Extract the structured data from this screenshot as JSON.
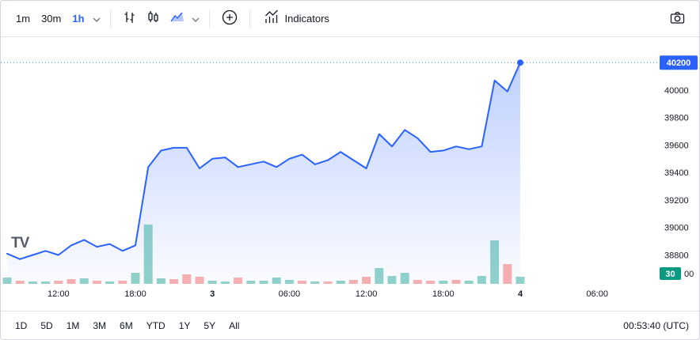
{
  "toolbar": {
    "timeframes": [
      {
        "label": "1m",
        "active": false
      },
      {
        "label": "30m",
        "active": false
      },
      {
        "label": "1h",
        "active": true
      }
    ],
    "indicators_label": "Indicators",
    "icons": [
      "chevron-down-icon",
      "bar-style-icon",
      "candle-style-icon",
      "area-style-icon",
      "plus-circle-icon",
      "indicators-icon",
      "camera-icon"
    ]
  },
  "chart": {
    "last_price_label": "40200",
    "volume_badge": "30",
    "partial_bottom_label": "00",
    "watermark": "TV"
  },
  "chart_data": {
    "type": "area",
    "title": "",
    "xlabel": "",
    "ylabel": "",
    "ylim": [
      38590,
      40385
    ],
    "y_ticks": [
      40000,
      39800,
      39600,
      39400,
      39200,
      39000,
      38800
    ],
    "last_price": 40200,
    "x": [
      "08:00",
      "09:00",
      "10:00",
      "11:00",
      "12:00",
      "13:00",
      "14:00",
      "15:00",
      "16:00",
      "17:00",
      "18:00",
      "19:00",
      "20:00",
      "21:00",
      "22:00",
      "23:00",
      "3",
      "01:00",
      "02:00",
      "03:00",
      "04:00",
      "05:00",
      "06:00",
      "07:00",
      "08:00",
      "09:00",
      "10:00",
      "11:00",
      "12:00",
      "13:00",
      "14:00",
      "15:00",
      "16:00",
      "17:00",
      "18:00",
      "19:00",
      "20:00",
      "21:00",
      "22:00",
      "23:00",
      "4"
    ],
    "series": [
      {
        "name": "price",
        "values": [
          38810,
          38770,
          38800,
          38830,
          38800,
          38870,
          38910,
          38860,
          38880,
          38830,
          38870,
          39440,
          39560,
          39580,
          39580,
          39430,
          39500,
          39510,
          39440,
          39460,
          39480,
          39440,
          39500,
          39530,
          39460,
          39490,
          39550,
          39490,
          39430,
          39680,
          39590,
          39710,
          39650,
          39550,
          39560,
          39590,
          39570,
          39590,
          40070,
          39990,
          40200
        ]
      }
    ],
    "volume": {
      "values": [
        8,
        4,
        3,
        3,
        4,
        6,
        7,
        4,
        3,
        4,
        14,
        75,
        7,
        6,
        12,
        9,
        4,
        3,
        8,
        4,
        4,
        8,
        5,
        4,
        3,
        3,
        4,
        5,
        9,
        20,
        10,
        14,
        5,
        4,
        4,
        5,
        4,
        10,
        55,
        25,
        9
      ],
      "direction": [
        "up",
        "down",
        "up",
        "up",
        "down",
        "down",
        "up",
        "down",
        "up",
        "down",
        "up",
        "up",
        "up",
        "down",
        "down",
        "down",
        "up",
        "up",
        "down",
        "up",
        "up",
        "up",
        "up",
        "down",
        "up",
        "down",
        "up",
        "down",
        "down",
        "up",
        "up",
        "up",
        "down",
        "down",
        "up",
        "down",
        "up",
        "up",
        "up",
        "down",
        "up"
      ]
    },
    "ticks": [
      {
        "i": 4,
        "label": "12:00",
        "bold": false
      },
      {
        "i": 10,
        "label": "18:00",
        "bold": false
      },
      {
        "i": 16,
        "label": "3",
        "bold": true
      },
      {
        "i": 22,
        "label": "06:00",
        "bold": false
      },
      {
        "i": 28,
        "label": "12:00",
        "bold": false
      },
      {
        "i": 34,
        "label": "18:00",
        "bold": false
      },
      {
        "i": 40,
        "label": "4",
        "bold": true
      },
      {
        "i": 46,
        "label": "06:00",
        "bold": false
      }
    ],
    "legend_position": "none",
    "grid": false
  },
  "bottom": {
    "ranges": [
      "1D",
      "5D",
      "1M",
      "3M",
      "6M",
      "YTD",
      "1Y",
      "5Y",
      "All"
    ],
    "clock": "00:53:40 (UTC)"
  },
  "colors": {
    "accent": "#2962ff",
    "up": "#26a69a",
    "down": "#ef5350",
    "badge_green": "#089981",
    "text": "#131722",
    "muted": "#787b86",
    "border": "#e0e3eb",
    "area_top": "rgba(41,98,255,0.30)",
    "area_bottom": "rgba(41,98,255,0.02)"
  }
}
